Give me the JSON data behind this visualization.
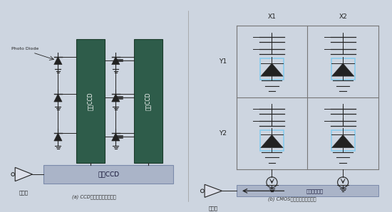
{
  "bg_color": "#cdd5e0",
  "panel_bg": "#e8ecf2",
  "ccd_col_color": "#2e5c4a",
  "ccd_col_edge": "#1a3a2a",
  "hccd_color": "#aab4c8",
  "hccd_edge": "#7a8aaa",
  "caption_a": "(a) CCD取像元件的動作原理",
  "caption_b": "(b) CMOS取像元件的動作原理",
  "label_photo_diode": "Photo Diode",
  "label_vccd": "垂直CCD",
  "label_hccd": "水平CCD",
  "label_amp": "増幅器",
  "label_noise": "雜訊消除電路",
  "label_x1": "X1",
  "label_x2": "X2",
  "label_y1": "Y1",
  "label_y2": "Y2",
  "line_color": "#222222",
  "cmos_box_color": "#88ccee",
  "divider_color": "#999999",
  "noise_box_color": "#aab4c8"
}
